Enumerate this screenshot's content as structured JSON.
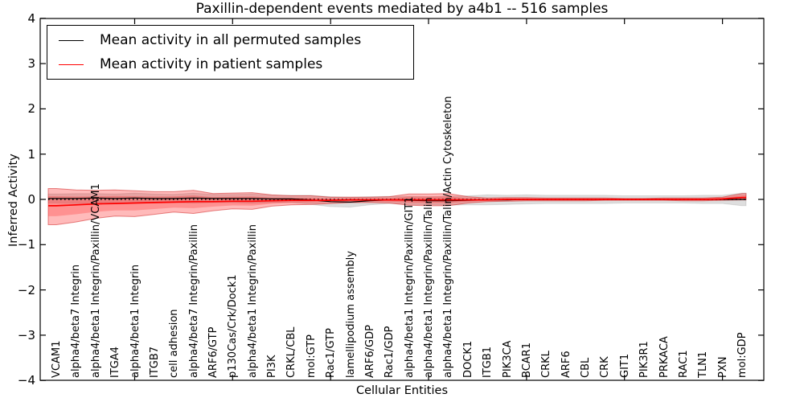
{
  "title": "Paxillin-dependent events mediated by a4b1 -- 516 samples",
  "axes": {
    "xlabel": "Cellular Entities",
    "ylabel": "Inferred Activity",
    "y_ticks": [
      "4",
      "3",
      "2",
      "1",
      "0",
      "−1",
      "−2",
      "−3",
      "−4"
    ],
    "ylim": [
      -4,
      4
    ]
  },
  "legend": {
    "entries": [
      {
        "label": "Mean activity in all permuted samples",
        "color": "#000000"
      },
      {
        "label": "Mean activity in patient samples",
        "color": "#ff0000"
      }
    ]
  },
  "colors": {
    "permuted_line": "#000000",
    "patient_line": "#ff0000",
    "permuted_band": "rgba(0,0,0,0.13)",
    "permuted_band_edge": "rgba(0,0,0,0.10)",
    "patient_band": "rgba(255,0,0,0.27)",
    "patient_band_inner": "rgba(255,0,0,0.22)",
    "patient_band_edge": "rgba(210,40,40,0.55)",
    "zero_line": "#000000",
    "frame": "#000000"
  },
  "chart_data": {
    "type": "line",
    "title": "Paxillin-dependent events mediated by a4b1 -- 516 samples",
    "xlabel": "Cellular Entities",
    "ylabel": "Inferred Activity",
    "ylim": [
      -4,
      4
    ],
    "grid": false,
    "legend_position": "upper left",
    "zero_line": true,
    "categories": [
      "VCAM1",
      "alpha4/beta7 Integrin",
      "alpha4/beta1 Integrin/Paxillin/VCAM1",
      "ITGA4",
      "alpha4/beta1 Integrin",
      "ITGB7",
      "cell adhesion",
      "alpha4/beta7 Integrin/Paxillin",
      "ARF6/GTP",
      "p130Cas/Crk/Dock1",
      "alpha4/beta1 Integrin/Paxillin",
      "PI3K",
      "CRKL/CBL",
      "mol:GTP",
      "Rac1/GTP",
      "lamellipodium assembly",
      "ARF6/GDP",
      "Rac1/GDP",
      "alpha4/beta1 Integrin/Paxillin/GIT1",
      "alpha4/beta1 Integrin/Paxillin/Talin",
      "alpha4/beta1 Integrin/Paxillin/Talin/Actin Cytoskeleton",
      "DOCK1",
      "ITGB1",
      "PIK3CA",
      "BCAR1",
      "CRKL",
      "ARF6",
      "CBL",
      "CRK",
      "GIT1",
      "PIK3R1",
      "PRKACA",
      "RAC1",
      "TLN1",
      "PXN",
      "mol:GDP"
    ],
    "series": [
      {
        "name": "Mean activity in all permuted samples",
        "color": "#000000",
        "values": [
          0.02,
          0.02,
          0.03,
          0.02,
          0.03,
          0.02,
          0.02,
          0.03,
          0.02,
          0.02,
          0.02,
          0.01,
          0.01,
          -0.01,
          -0.05,
          -0.06,
          -0.03,
          -0.01,
          -0.02,
          -0.03,
          -0.03,
          -0.02,
          -0.01,
          -0.01,
          0,
          0,
          0,
          0,
          0,
          0,
          0,
          0,
          0,
          0,
          0,
          0
        ],
        "band_upper": [
          0.12,
          0.13,
          0.13,
          0.12,
          0.14,
          0.12,
          0.11,
          0.14,
          0.11,
          0.11,
          0.12,
          0.09,
          0.09,
          0.09,
          0.06,
          0.05,
          0.06,
          0.07,
          0.07,
          0.06,
          0.07,
          0.08,
          0.1,
          0.09,
          0.1,
          0.09,
          0.09,
          0.09,
          0.09,
          0.08,
          0.08,
          0.08,
          0.08,
          0.09,
          0.09,
          0.14
        ],
        "band_lower": [
          -0.08,
          -0.09,
          -0.07,
          -0.08,
          -0.08,
          -0.08,
          -0.07,
          -0.08,
          -0.07,
          -0.07,
          -0.08,
          -0.07,
          -0.07,
          -0.11,
          -0.16,
          -0.17,
          -0.12,
          -0.09,
          -0.11,
          -0.12,
          -0.13,
          -0.12,
          -0.12,
          -0.11,
          -0.1,
          -0.09,
          -0.09,
          -0.09,
          -0.09,
          -0.08,
          -0.08,
          -0.08,
          -0.08,
          -0.09,
          -0.09,
          -0.14
        ]
      },
      {
        "name": "Mean activity in patient samples",
        "color": "#ff0000",
        "values": [
          -0.14,
          -0.12,
          -0.1,
          -0.09,
          -0.08,
          -0.07,
          -0.06,
          -0.05,
          -0.05,
          -0.04,
          -0.04,
          -0.03,
          -0.02,
          -0.02,
          -0.02,
          -0.01,
          -0.01,
          -0.01,
          -0.01,
          -0.01,
          -0.01,
          -0.01,
          -0.01,
          0,
          0,
          0,
          0,
          0,
          0,
          0,
          0,
          0,
          0,
          0,
          0.01,
          0.04
        ],
        "band_upper": [
          0.24,
          0.21,
          0.2,
          0.21,
          0.19,
          0.17,
          0.17,
          0.2,
          0.13,
          0.14,
          0.15,
          0.1,
          0.08,
          0.08,
          0.05,
          0.05,
          0.05,
          0.06,
          0.12,
          0.12,
          0.13,
          0.06,
          0.03,
          0.04,
          0.04,
          0.03,
          0.03,
          0.03,
          0.03,
          0.02,
          0.02,
          0.03,
          0.03,
          0.03,
          0.05,
          0.13
        ],
        "band_lower": [
          -0.56,
          -0.5,
          -0.42,
          -0.37,
          -0.38,
          -0.33,
          -0.28,
          -0.31,
          -0.25,
          -0.21,
          -0.22,
          -0.15,
          -0.12,
          -0.11,
          -0.09,
          -0.07,
          -0.07,
          -0.08,
          -0.13,
          -0.14,
          -0.14,
          -0.08,
          -0.05,
          -0.04,
          -0.03,
          -0.03,
          -0.03,
          -0.03,
          -0.02,
          -0.02,
          -0.02,
          -0.02,
          -0.03,
          -0.03,
          -0.02,
          -0.01
        ]
      }
    ]
  }
}
